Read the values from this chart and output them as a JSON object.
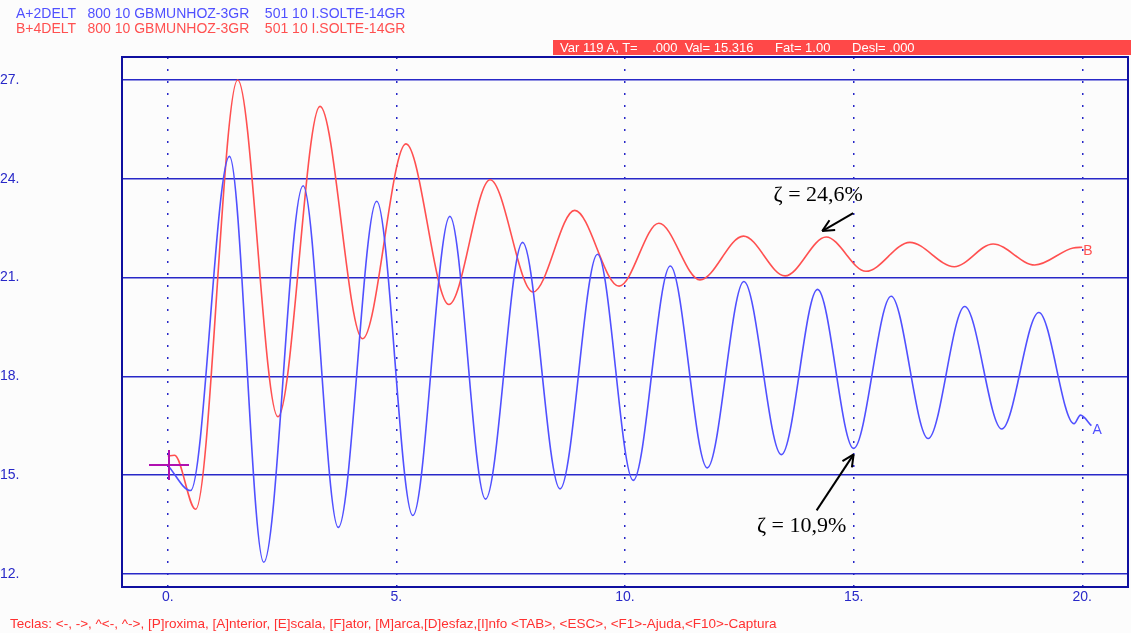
{
  "chart_data": {
    "type": "line",
    "series": [
      {
        "name": "A",
        "color": "#5050ff",
        "x": [
          0,
          0.5,
          1.35,
          2.1,
          2.96,
          3.73,
          4.57,
          5.36,
          6.17,
          6.95,
          7.76,
          8.58,
          9.4,
          10.18,
          10.99,
          11.8,
          12.6,
          13.42,
          14.21,
          15.0,
          15.82,
          16.63,
          17.43,
          18.24,
          19.05,
          19.82,
          19.96,
          20.2
        ],
        "values": [
          15.3,
          14.53,
          24.68,
          12.35,
          23.79,
          13.41,
          23.32,
          13.77,
          22.86,
          14.27,
          22.07,
          14.58,
          21.71,
          14.84,
          21.35,
          15.22,
          20.88,
          15.62,
          20.64,
          15.81,
          20.43,
          16.11,
          20.12,
          16.4,
          19.94,
          16.56,
          16.82,
          16.5
        ]
      },
      {
        "name": "B",
        "color": "#ff5050",
        "x": [
          0,
          0.15,
          0.61,
          1.53,
          2.41,
          3.33,
          4.26,
          5.21,
          6.15,
          7.05,
          7.99,
          8.9,
          9.87,
          10.74,
          11.64,
          12.59,
          13.5,
          14.4,
          15.27,
          16.23,
          17.2,
          18.05,
          18.96,
          19.8,
          20.0
        ],
        "values": [
          15.58,
          15.6,
          13.96,
          27.0,
          16.77,
          26.2,
          19.14,
          25.06,
          20.18,
          23.97,
          20.56,
          23.04,
          20.74,
          22.65,
          20.93,
          22.26,
          21.05,
          22.23,
          21.19,
          22.07,
          21.33,
          22.02,
          21.38,
          21.9,
          21.92
        ]
      }
    ],
    "xlim": [
      -1,
      21
    ],
    "xticks": [
      {
        "value": 0,
        "label": "0."
      },
      {
        "value": 5,
        "label": "5."
      },
      {
        "value": 10,
        "label": "10."
      },
      {
        "value": 15,
        "label": "15."
      },
      {
        "value": 20,
        "label": "20."
      }
    ],
    "ylim": [
      11.6,
      27.7
    ],
    "yticks": [
      {
        "value": 12,
        "label": "12."
      },
      {
        "value": 15,
        "label": "15."
      },
      {
        "value": 18,
        "label": "18."
      },
      {
        "value": 21,
        "label": "21."
      },
      {
        "value": 24,
        "label": "24."
      },
      {
        "value": 27,
        "label": "27."
      }
    ],
    "grid": true,
    "marker": "none",
    "line_style": "solid",
    "annotations": [
      "A+2DELT   800 10 GBMUNHOZ-3GR    501 10 I.SOLTE-14GR",
      "B+4DELT   800 10 GBMUNHOZ-3GR    501 10 I.SOLTE-14GR",
      "Var 119 A, T=    .000  Val= 15.316      Fat= 1.00      Desl= .000",
      "Teclas: <-, ->, ^<-, ^->, [P]roxima, [A]nterior, [E]scala, [F]ator, [M]arca,[D]esfaz,[I]nfo <TAB>, <ESC>, <F1>-Ajuda,<F10>-Captura",
      {
        "text": "ζ = 24,6%",
        "x": 14.4,
        "y": 22.23
      },
      {
        "text": "ζ = 10,9%",
        "x": 15.0,
        "y": 15.81
      }
    ]
  }
}
